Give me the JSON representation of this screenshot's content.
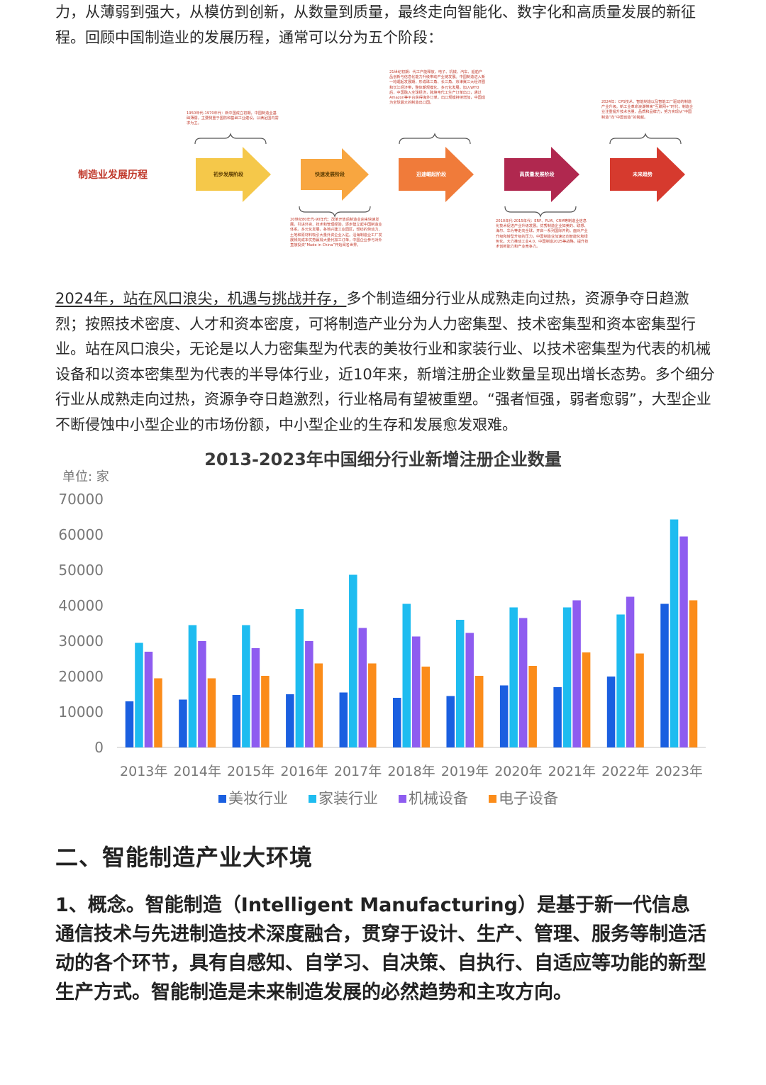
{
  "intro": {
    "text": "力，从薄弱到强大，从模仿到创新，从数量到质量，最终走向智能化、数字化和高质量发展的新征程。回顾中国制造业的发展历程，通常可以分为五个阶段："
  },
  "timeline": {
    "title": "制造业发展历程",
    "stages": [
      {
        "label": "初步发展阶段",
        "color": "#f5c84a"
      },
      {
        "label": "快速发展阶段",
        "color": "#f8a640"
      },
      {
        "label": "迅速崛起阶段",
        "color": "#f07b3a"
      },
      {
        "label": "高质量发展阶段",
        "color": "#b0284f"
      },
      {
        "label": "未来趋势",
        "color": "#d63a2e"
      }
    ],
    "notes": [
      "1950年代-1970年代：新中国成立初期，中国制造业基础薄弱，主要侧重于国防和基础工业建设，以满足国内需求为主。",
      "20世纪80年代-90年代：改革开放后制造业迎来快速发展。引进外资、技术和管理经验，逐步建立起中国制造业体系。多元化发展，各地兴建工业园区，轻纺的劳动力、土地和原材料吸引大量外资企业入驻。沿海制造业工厂发展倾向成本优势赢得大量代加工订单，中国企业参与对外直接投资“Made in China”开始闻名世界。",
      "21世纪初期：代工产能释放，电子、机械、汽车、船舶产品创新与信息化能力升级带动产业链发展。中国制造进入新一轮崛起发展期，形成珠三角、长三角、京津冀三大经济圈和长江经济带，整体朝规模化、多元化发展。加入WTO后，中国融入全球经济，跨境电代工生产订单出口，通过Amazon等平台获得海外订单，出口规模持续增加，中国成为全球最大的制造出口国。",
      "2010年代-2015年代：ERP、PLM、CRM等制造业信息化技术促进产业升级发展。优秀制造企业如美的、联想、海尔、华为等走向全球，开启一系列国际并购。面对产业升级和转型升级的压力，中国制造业加速迈向智能化和绿色化。大力推动工业4.0、中国制造2025等战略，提升技术创新能力和产业竞争力。",
      "2024年：CPS技术、智能制造以及智能工厂驱动的制造产业升级。新工业革命浪潮带来“互联网+”时代，制造企业注重提升技术含量、品质和品牌力，努力实现从“中国制造”向“中国创造”的跨越。"
    ]
  },
  "body": {
    "highlight": "2024年，站在风口浪尖，机遇与挑战并存，",
    "text": "多个制造细分行业从成熟走向过热，资源争夺日趋激烈；按照技术密度、人才和资本密度，可将制造产业分为人力密集型、技术密集型和资本密集型行业。站在风口浪尖，无论是以人力密集型为代表的美妆行业和家装行业、以技术密集型为代表的机械设备和以资本密集型为代表的半导体行业，近10年来，新增注册企业数量呈现出增长态势。多个细分行业从成熟走向过热，资源争夺日趋激烈，行业格局有望被重塑。“强者恒强，弱者愈弱”，大型企业不断侵蚀中小型企业的市场份额，中小型企业的生存和发展愈发艰难。"
  },
  "chart_data": {
    "type": "bar",
    "title": "2013-2023年中国细分行业新增注册企业数量",
    "unit_label": "单位: 家",
    "categories": [
      "2013年",
      "2014年",
      "2015年",
      "2016年",
      "2017年",
      "2018年",
      "2019年",
      "2020年",
      "2021年",
      "2022年",
      "2023年"
    ],
    "ylim": [
      0,
      70000
    ],
    "yticks": [
      "0",
      "10000",
      "20000",
      "30000",
      "40000",
      "50000",
      "60000",
      "70000"
    ],
    "grid": false,
    "legend_position": "bottom",
    "series": [
      {
        "name": "美妆行业",
        "color": "#1a5fe0",
        "values": [
          13000,
          13500,
          14800,
          15000,
          15500,
          14000,
          14500,
          17500,
          17000,
          20000,
          40500
        ]
      },
      {
        "name": "家装行业",
        "color": "#1ebcf0",
        "values": [
          29500,
          34500,
          34500,
          39000,
          48700,
          40500,
          36000,
          39500,
          39500,
          37500,
          64300
        ]
      },
      {
        "name": "机械设备",
        "color": "#8e5cf0",
        "values": [
          27000,
          30000,
          28000,
          30000,
          33700,
          31300,
          32300,
          36500,
          41500,
          42500,
          59500
        ]
      },
      {
        "name": "电子设备",
        "color": "#fb8c1a",
        "values": [
          19500,
          19500,
          20200,
          23700,
          23700,
          22800,
          20200,
          23000,
          26800,
          26500,
          41500
        ]
      }
    ]
  },
  "section": {
    "heading": "二、智能制造产业大环境"
  },
  "concept": {
    "text": "1、概念。智能制造（Intelligent Manufacturing）是基于新一代信息通信技术与先进制造技术深度融合，贯穿于设计、生产、管理、服务等制造活动的各个环节，具有自感知、自学习、自决策、自执行、自适应等功能的新型生产方式。智能制造是未来制造发展的必然趋势和主攻方向。"
  }
}
